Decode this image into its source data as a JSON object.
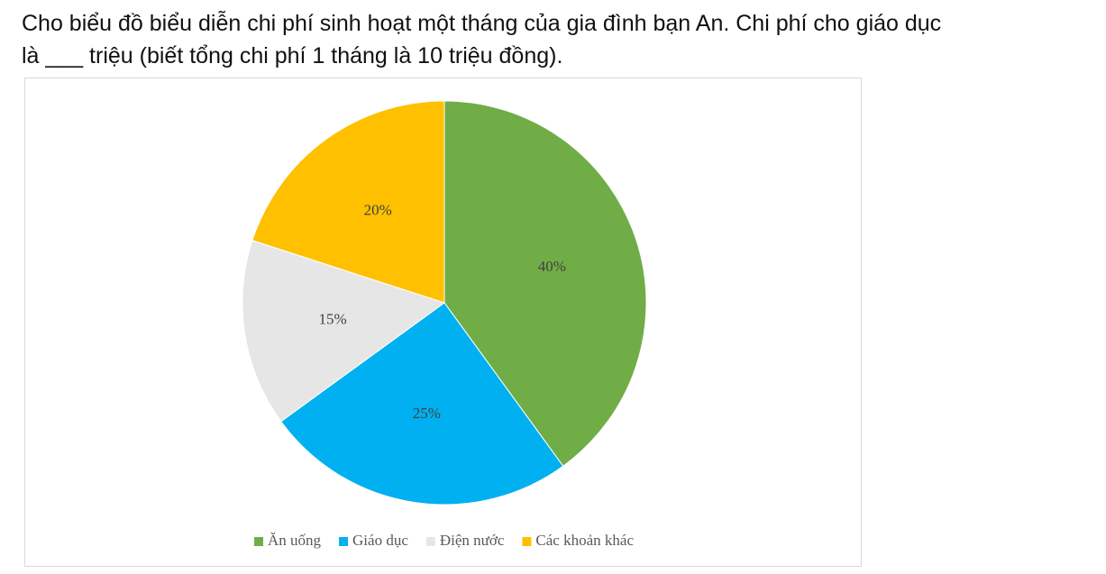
{
  "question": {
    "line1": "Cho biểu đồ biểu diễn chi phí sinh hoạt một tháng của gia đình bạn An. Chi phí cho giáo dục",
    "line2": "là ___ triệu (biết tổng chi phí 1 tháng là 10 triệu đồng)."
  },
  "chart_data": {
    "type": "pie",
    "categories": [
      "Ăn uống",
      "Giáo dục",
      "Điện nước",
      "Các khoản khác"
    ],
    "values": [
      40,
      25,
      15,
      20
    ],
    "labels": [
      "40%",
      "25%",
      "15%",
      "20%"
    ],
    "colors": [
      "#70ad47",
      "#00b0f0",
      "#e7e6e6",
      "#ffc000"
    ],
    "title": "",
    "legend_position": "bottom",
    "start_angle": "12 o'clock",
    "direction": "clockwise"
  }
}
